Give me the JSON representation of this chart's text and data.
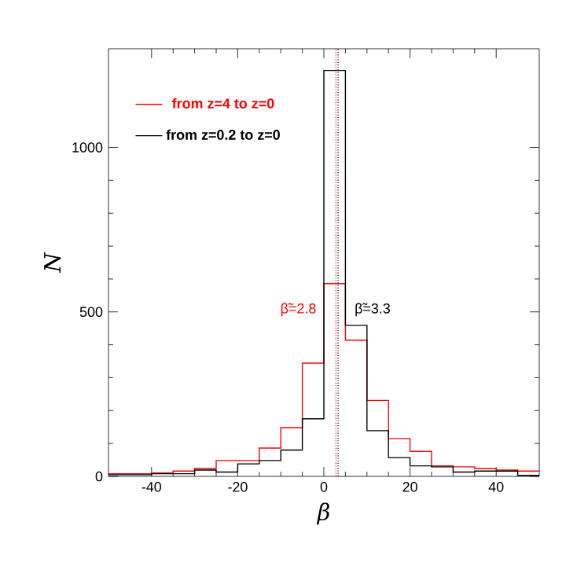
{
  "chart_data": {
    "type": "histogram",
    "xlabel": "β",
    "ylabel": "N",
    "bins": [
      -50,
      -45,
      -40,
      -35,
      -30,
      -25,
      -20,
      -15,
      -10,
      -5,
      0,
      5,
      10,
      15,
      20,
      25,
      30,
      35,
      40,
      45,
      50
    ],
    "series": [
      {
        "name": "from z=4 to z=0",
        "color": "#ff0000",
        "values": [
          8,
          8,
          10,
          16,
          24,
          48,
          48,
          86,
          148,
          344,
          586,
          414,
          231,
          115,
          76,
          32,
          29,
          24,
          19,
          16
        ]
      },
      {
        "name": "from z=0.2 to z=0",
        "color": "#000000",
        "values": [
          5,
          5,
          8,
          8,
          19,
          13,
          38,
          48,
          80,
          175,
          1234,
          459,
          139,
          57,
          32,
          29,
          13,
          16,
          16,
          3
        ]
      }
    ],
    "xlim": [
      -50,
      50
    ],
    "ylim": [
      0,
      1300
    ],
    "xticks": [
      -40,
      -20,
      0,
      20,
      40
    ],
    "yticks": [
      0,
      500,
      1000
    ],
    "ref_lines": [
      {
        "axis": "x",
        "value": 2.8,
        "label": "β̃=2.8",
        "color": "#ff0000",
        "line_style": "dotted"
      },
      {
        "axis": "x",
        "value": 3.3,
        "label": "β̃=3.3",
        "color": "#000000",
        "line_style": "dotted"
      }
    ],
    "legend": "top left",
    "grid": false
  }
}
